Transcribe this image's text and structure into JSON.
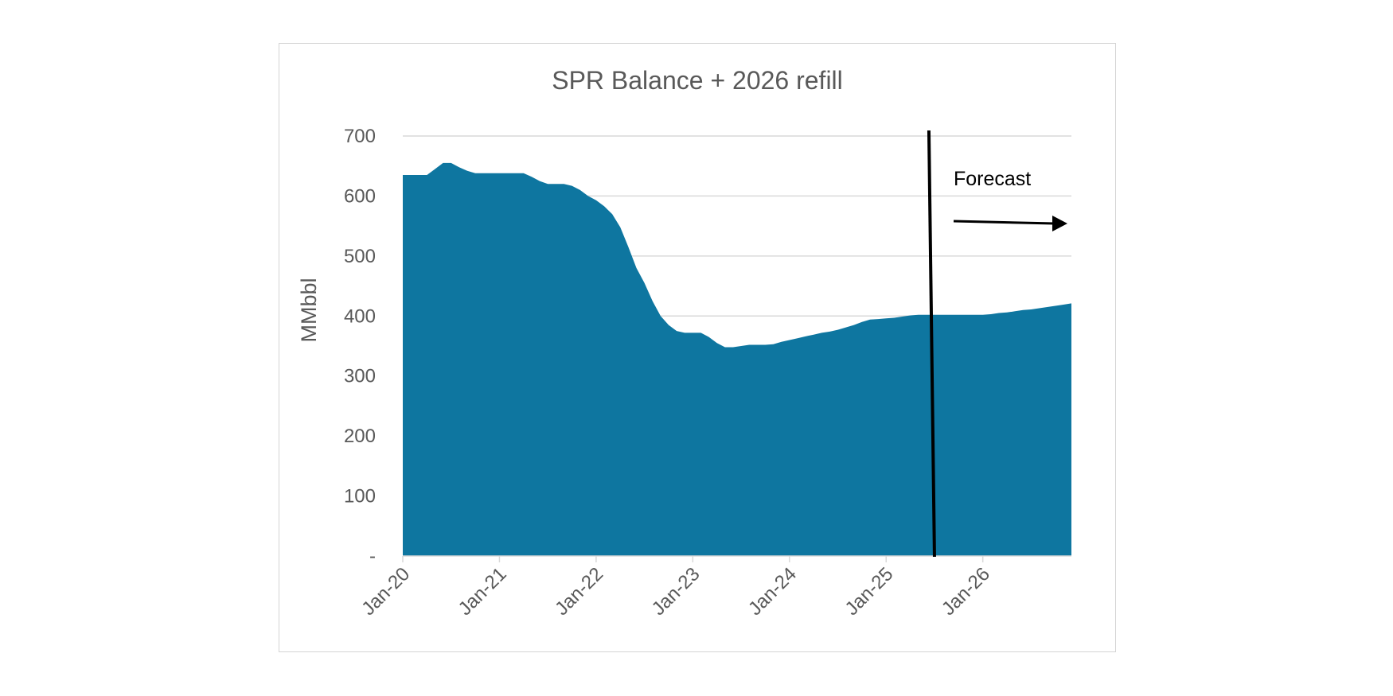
{
  "chart_data": {
    "type": "area",
    "title": "SPR Balance + 2026 refill",
    "ylabel": "MMbbl",
    "xlabel": "",
    "ylim": [
      0,
      700
    ],
    "xlim": [
      "2020-01",
      "2026-12"
    ],
    "yticks": [
      {
        "value": 0,
        "label": "-"
      },
      {
        "value": 100,
        "label": "100"
      },
      {
        "value": 200,
        "label": "200"
      },
      {
        "value": 300,
        "label": "300"
      },
      {
        "value": 400,
        "label": "400"
      },
      {
        "value": 500,
        "label": "500"
      },
      {
        "value": 600,
        "label": "600"
      },
      {
        "value": 700,
        "label": "700"
      }
    ],
    "xticks": [
      {
        "date": "2020-01",
        "label": "Jan-20"
      },
      {
        "date": "2021-01",
        "label": "Jan-21"
      },
      {
        "date": "2022-01",
        "label": "Jan-22"
      },
      {
        "date": "2023-01",
        "label": "Jan-23"
      },
      {
        "date": "2024-01",
        "label": "Jan-24"
      },
      {
        "date": "2025-01",
        "label": "Jan-25"
      },
      {
        "date": "2026-01",
        "label": "Jan-26"
      }
    ],
    "grid": true,
    "fill_color": "#0e76a0",
    "series": [
      {
        "x": [
          "2020-01",
          "2020-02",
          "2020-03",
          "2020-04",
          "2020-05",
          "2020-06",
          "2020-07",
          "2020-08",
          "2020-09",
          "2020-10",
          "2020-11",
          "2020-12",
          "2021-01",
          "2021-02",
          "2021-03",
          "2021-04",
          "2021-05",
          "2021-06",
          "2021-07",
          "2021-08",
          "2021-09",
          "2021-10",
          "2021-11",
          "2021-12",
          "2022-01",
          "2022-02",
          "2022-03",
          "2022-04",
          "2022-05",
          "2022-06",
          "2022-07",
          "2022-08",
          "2022-09",
          "2022-10",
          "2022-11",
          "2022-12",
          "2023-01",
          "2023-02",
          "2023-03",
          "2023-04",
          "2023-05",
          "2023-06",
          "2023-07",
          "2023-08",
          "2023-09",
          "2023-10",
          "2023-11",
          "2023-12",
          "2024-01",
          "2024-02",
          "2024-03",
          "2024-04",
          "2024-05",
          "2024-06",
          "2024-07",
          "2024-08",
          "2024-09",
          "2024-10",
          "2024-11",
          "2024-12",
          "2025-01",
          "2025-02",
          "2025-03",
          "2025-04",
          "2025-05",
          "2025-06",
          "2025-07",
          "2025-08",
          "2025-09",
          "2025-10",
          "2025-11",
          "2025-12",
          "2026-01",
          "2026-02",
          "2026-03",
          "2026-04",
          "2026-05",
          "2026-06",
          "2026-07",
          "2026-08",
          "2026-09",
          "2026-10",
          "2026-11",
          "2026-12"
        ],
        "values": [
          635,
          635,
          635,
          635,
          645,
          655,
          655,
          648,
          642,
          638,
          638,
          638,
          638,
          638,
          638,
          638,
          632,
          625,
          620,
          620,
          620,
          617,
          610,
          600,
          593,
          583,
          570,
          548,
          515,
          480,
          455,
          425,
          400,
          385,
          375,
          372,
          372,
          372,
          365,
          355,
          348,
          348,
          350,
          352,
          352,
          352,
          353,
          357,
          360,
          363,
          366,
          369,
          372,
          374,
          377,
          381,
          385,
          390,
          394,
          395,
          396,
          397,
          399,
          401,
          402,
          402,
          402,
          402,
          402,
          402,
          402,
          402,
          402,
          403,
          405,
          406,
          408,
          410,
          411,
          413,
          415,
          417,
          419,
          421
        ]
      }
    ],
    "annotations": {
      "forecast_label": "Forecast",
      "forecast_line_date": "2025-07"
    }
  }
}
